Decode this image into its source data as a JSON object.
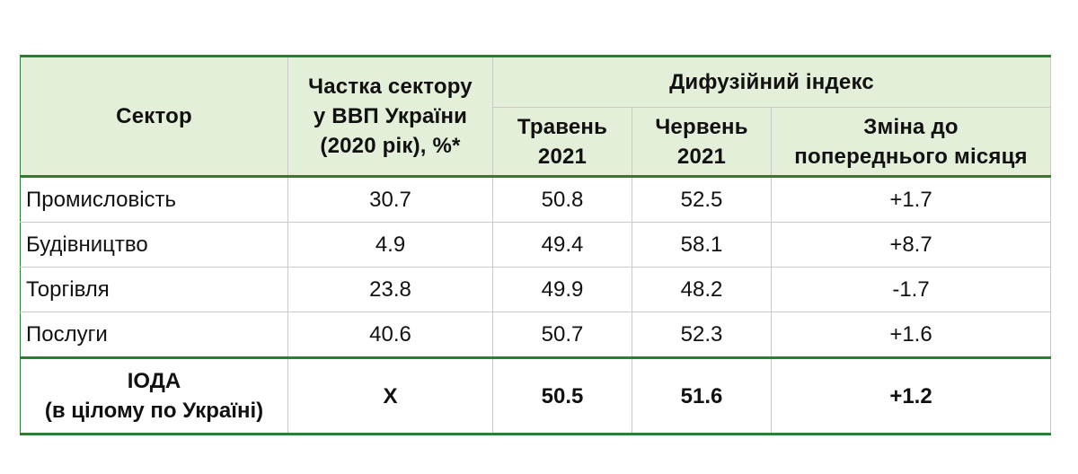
{
  "table": {
    "header": {
      "sector": "Сектор",
      "share_line1": "Частка сектору",
      "share_line2": "у ВВП України",
      "share_line3": "(2020 рік), %*",
      "diffusion": "Дифузійний індекс",
      "may_line1": "Травень",
      "may_line2": "2021",
      "june_line1": "Червень",
      "june_line2": "2021",
      "change_line1": "Зміна до",
      "change_line2": "попереднього місяця"
    },
    "rows": [
      {
        "sector": "Промисловість",
        "share": "30.7",
        "may": "50.8",
        "june": "52.5",
        "change": "+1.7"
      },
      {
        "sector": "Будівництво",
        "share": "4.9",
        "may": "49.4",
        "june": "58.1",
        "change": "+8.7"
      },
      {
        "sector": "Торгівля",
        "share": "23.8",
        "may": "49.9",
        "june": "48.2",
        "change": "-1.7"
      },
      {
        "sector": "Послуги",
        "share": "40.6",
        "may": "50.7",
        "june": "52.3",
        "change": "+1.6"
      }
    ],
    "total": {
      "name_line1": "ІОДА",
      "name_line2": "(в цілому по Україні)",
      "share": "X",
      "may": "50.5",
      "june": "51.6",
      "change": "+1.2"
    }
  },
  "colors": {
    "header_bg": "#e3efd8",
    "accent_border": "#2e7d32",
    "grid": "#c9c9c9"
  }
}
